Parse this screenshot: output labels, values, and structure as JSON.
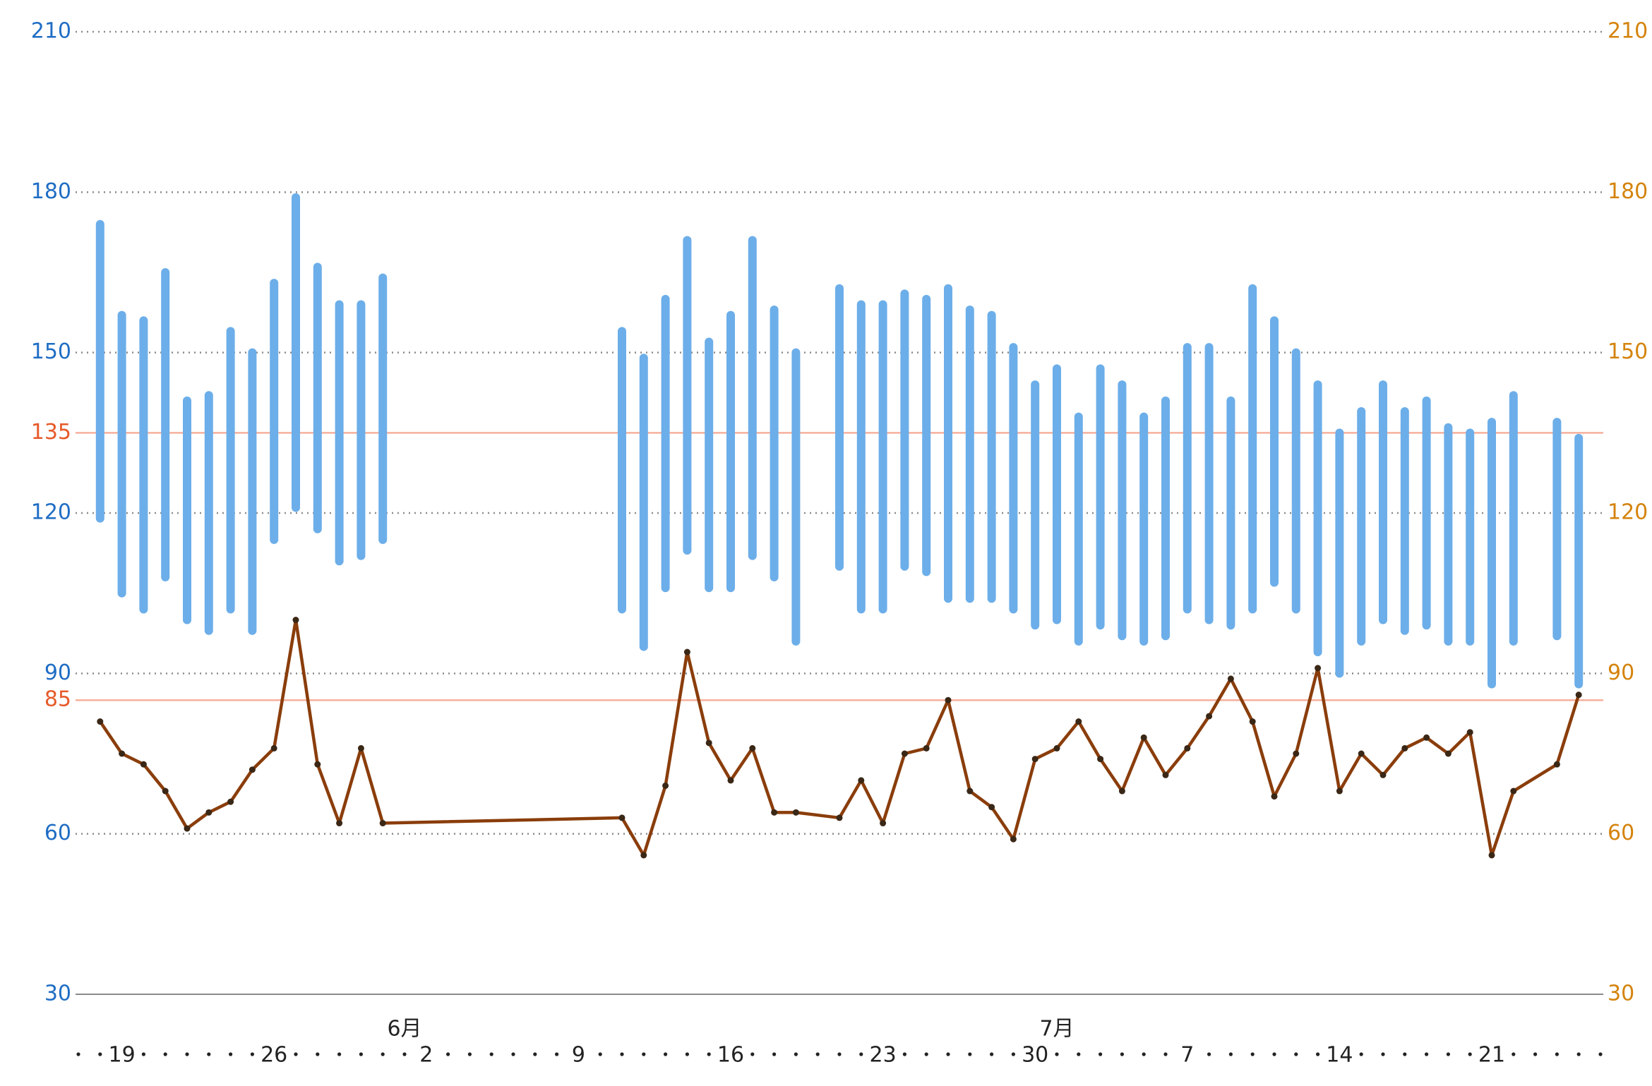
{
  "chart_data": {
    "type": "combo",
    "x": [
      "5-18",
      "5-19",
      "5-20",
      "5-21",
      "5-22",
      "5-23",
      "5-24",
      "5-25",
      "5-26",
      "5-27",
      "5-28",
      "5-29",
      "5-30",
      "5-31",
      "6-11",
      "6-12",
      "6-13",
      "6-14",
      "6-15",
      "6-16",
      "6-17",
      "6-18",
      "6-19",
      "6-21",
      "6-22",
      "6-23",
      "6-24",
      "6-25",
      "6-26",
      "6-27",
      "6-28",
      "6-29",
      "6-30",
      "7-1",
      "7-2",
      "7-3",
      "7-4",
      "7-5",
      "7-6",
      "7-7",
      "7-8",
      "7-9",
      "7-10",
      "7-11",
      "7-12",
      "7-13",
      "7-14",
      "7-15",
      "7-16",
      "7-17",
      "7-18",
      "7-19",
      "7-20",
      "7-21",
      "7-22",
      "7-24",
      "7-25"
    ],
    "ranges": {
      "color": "#6caee9",
      "high": [
        174,
        157,
        156,
        165,
        141,
        142,
        154,
        150,
        163,
        179,
        166,
        159,
        159,
        164,
        154,
        149,
        160,
        171,
        152,
        157,
        171,
        158,
        150,
        162,
        159,
        159,
        161,
        160,
        162,
        158,
        157,
        151,
        144,
        147,
        138,
        147,
        144,
        138,
        141,
        151,
        151,
        141,
        162,
        156,
        150,
        144,
        135,
        139,
        144,
        139,
        141,
        136,
        135,
        137,
        142,
        137,
        134
      ],
      "low": [
        119,
        105,
        102,
        108,
        100,
        98,
        102,
        98,
        115,
        121,
        117,
        111,
        112,
        115,
        102,
        95,
        106,
        113,
        106,
        106,
        112,
        108,
        96,
        110,
        102,
        102,
        110,
        109,
        104,
        104,
        104,
        102,
        99,
        100,
        96,
        99,
        97,
        96,
        97,
        102,
        100,
        99,
        102,
        107,
        102,
        94,
        90,
        96,
        100,
        98,
        99,
        96,
        96,
        88,
        96,
        97,
        88
      ]
    },
    "line": {
      "color": "#8a3d0b",
      "axis": "y2",
      "values": [
        81,
        75,
        73,
        68,
        61,
        64,
        66,
        72,
        76,
        100,
        73,
        62,
        76,
        62,
        63,
        56,
        69,
        94,
        77,
        70,
        76,
        64,
        64,
        63,
        70,
        62,
        75,
        76,
        85,
        68,
        65,
        59,
        74,
        76,
        81,
        74,
        68,
        78,
        71,
        76,
        82,
        89,
        81,
        67,
        75,
        91,
        68,
        75,
        71,
        76,
        78,
        75,
        79,
        56,
        68,
        73,
        86
      ]
    },
    "xlim": [
      "5-17",
      "7-26"
    ],
    "xticks": [
      {
        "value": "5-19",
        "label": "19"
      },
      {
        "value": "5-26",
        "label": "26"
      },
      {
        "value": "6-2",
        "label": "2"
      },
      {
        "value": "6-9",
        "label": "9"
      },
      {
        "value": "6-16",
        "label": "16"
      },
      {
        "value": "6-23",
        "label": "23"
      },
      {
        "value": "6-30",
        "label": "30"
      },
      {
        "value": "7-7",
        "label": "7"
      },
      {
        "value": "7-14",
        "label": "14"
      },
      {
        "value": "7-21",
        "label": "21"
      }
    ],
    "month_labels": [
      {
        "value": "6-1",
        "label": "6月"
      },
      {
        "value": "7-1",
        "label": "7月"
      }
    ],
    "ylim": [
      30,
      210
    ],
    "yticks": [
      30,
      60,
      90,
      120,
      150,
      180,
      210
    ],
    "ytick_color": "#1f6dc4",
    "y2lim": [
      30,
      210
    ],
    "y2ticks": [
      30,
      60,
      90,
      120,
      150,
      180,
      210
    ],
    "y2tick_color": "#d4830c",
    "ref_lines": [
      {
        "value": 135,
        "label": "135"
      },
      {
        "value": 85,
        "label": "85"
      }
    ],
    "ref_color": "#f6b09c",
    "ref_label_color": "#e65a2a",
    "grid": true
  }
}
